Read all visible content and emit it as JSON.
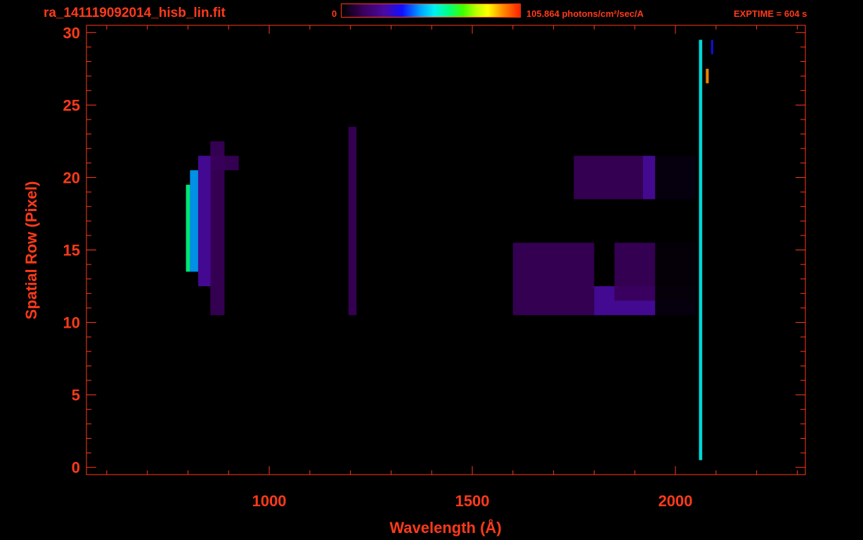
{
  "header": {
    "filename": "ra_141119092014_hisb_lin.fit",
    "colorbar_min": "0",
    "colorbar_max": "105.864 photons/cm²/sec/A",
    "exptime": "EXPTIME = 604 s"
  },
  "chart_data": {
    "type": "heatmap",
    "title": "ra_141119092014_hisb_lin.fit",
    "xlabel": "Wavelength (Å)",
    "ylabel": "Spatial Row (Pixel)",
    "xlim": [
      550,
      2320
    ],
    "ylim": [
      -0.5,
      30.5
    ],
    "x_ticks": [
      1000,
      1500,
      2000
    ],
    "y_ticks": [
      0,
      5,
      10,
      15,
      20,
      25,
      30
    ],
    "colorbar": {
      "min": 0,
      "max": 105.864,
      "unit": "photons/cm²/sec/A",
      "colors": [
        "#000000",
        "#3a005a",
        "#4a0aa0",
        "#1010ff",
        "#00a0ff",
        "#00f0f0",
        "#00ff80",
        "#40ff00",
        "#c0ff00",
        "#ffff00",
        "#ff9000",
        "#ff2000"
      ]
    },
    "features": [
      {
        "x0": 795,
        "x1": 805,
        "rows": [
          14,
          19
        ],
        "level": 0.55
      },
      {
        "x0": 805,
        "x1": 825,
        "rows": [
          14,
          20
        ],
        "level": 0.35
      },
      {
        "x0": 825,
        "x1": 860,
        "rows": [
          13,
          21
        ],
        "level": 0.14
      },
      {
        "x0": 860,
        "x1": 925,
        "rows": [
          21,
          21
        ],
        "level": 0.12
      },
      {
        "x0": 855,
        "x1": 890,
        "rows": [
          11,
          22
        ],
        "level": 0.05
      },
      {
        "x0": 1195,
        "x1": 1215,
        "rows": [
          11,
          23
        ],
        "level": 0.1
      },
      {
        "x0": 1550,
        "x1": 1750,
        "rows": [
          19,
          21
        ],
        "level": 0.04
      },
      {
        "x0": 1750,
        "x1": 1920,
        "rows": [
          19,
          21
        ],
        "level": 0.12
      },
      {
        "x0": 1920,
        "x1": 2050,
        "rows": [
          19,
          21
        ],
        "level": 0.22
      },
      {
        "x0": 1600,
        "x1": 1800,
        "rows": [
          11,
          15
        ],
        "level": 0.05
      },
      {
        "x0": 1800,
        "x1": 2050,
        "rows": [
          11,
          12
        ],
        "level": 0.18
      },
      {
        "x0": 1850,
        "x1": 2050,
        "rows": [
          12,
          15
        ],
        "level": 0.08
      },
      {
        "x0": 1950,
        "x1": 2060,
        "rows": [
          1,
          29
        ],
        "level": 0.04
      },
      {
        "x0": 2058,
        "x1": 2066,
        "rows": [
          1,
          29
        ],
        "level": 0.45
      },
      {
        "x0": 2075,
        "x1": 2082,
        "rows": [
          27,
          27
        ],
        "level": 0.95
      },
      {
        "x0": 2088,
        "x1": 2093,
        "rows": [
          29,
          29
        ],
        "level": 0.3
      }
    ]
  }
}
